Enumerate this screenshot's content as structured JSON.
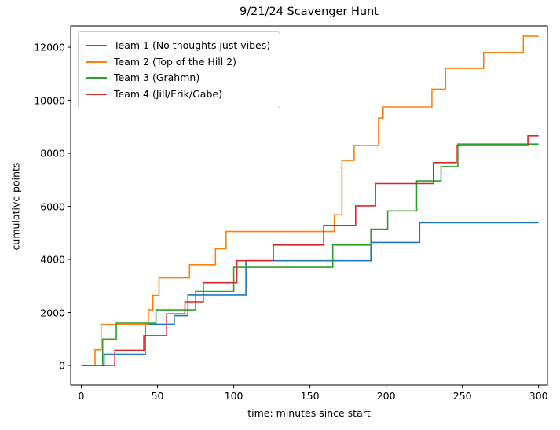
{
  "chart_data": {
    "type": "line",
    "subtype": "step-post",
    "title": "9/21/24 Scavenger Hunt",
    "xlabel": "time: minutes since start",
    "ylabel": "cumulative points",
    "xticks": [
      0,
      50,
      100,
      150,
      200,
      250,
      300
    ],
    "yticks": [
      0,
      2000,
      4000,
      6000,
      8000,
      10000,
      12000
    ],
    "xlim": [
      -7,
      306
    ],
    "ylim": [
      -740,
      12800
    ],
    "grid": false,
    "legend_position": "upper left",
    "axis_color": "#000000",
    "background_color": "#ffffff",
    "series": [
      {
        "name": "Team 1 (No thoughts just vibes)",
        "color": "#1f77b4",
        "steps": [
          [
            0,
            0
          ],
          [
            15,
            430
          ],
          [
            42,
            1560
          ],
          [
            61,
            1880
          ],
          [
            70,
            2670
          ],
          [
            108,
            3950
          ],
          [
            190,
            4640
          ],
          [
            222,
            5380
          ],
          [
            300,
            5380
          ]
        ]
      },
      {
        "name": "Team 2 (Top of the Hill 2)",
        "color": "#ff7f0e",
        "steps": [
          [
            0,
            0
          ],
          [
            9,
            600
          ],
          [
            13,
            1550
          ],
          [
            44,
            2100
          ],
          [
            47,
            2650
          ],
          [
            51,
            3300
          ],
          [
            71,
            3800
          ],
          [
            88,
            4400
          ],
          [
            95,
            5050
          ],
          [
            166,
            5680
          ],
          [
            171,
            7730
          ],
          [
            179,
            8300
          ],
          [
            195,
            9330
          ],
          [
            198,
            9750
          ],
          [
            230,
            10420
          ],
          [
            239,
            11200
          ],
          [
            264,
            11800
          ],
          [
            290,
            12420
          ],
          [
            300,
            12420
          ]
        ]
      },
      {
        "name": "Team 3 (Grahmn)",
        "color": "#2ca02c",
        "steps": [
          [
            0,
            0
          ],
          [
            14,
            1000
          ],
          [
            23,
            1600
          ],
          [
            49,
            2100
          ],
          [
            75,
            2800
          ],
          [
            100,
            3700
          ],
          [
            165,
            4540
          ],
          [
            190,
            5140
          ],
          [
            201,
            5830
          ],
          [
            220,
            6960
          ],
          [
            236,
            7500
          ],
          [
            247,
            8350
          ],
          [
            300,
            8350
          ]
        ]
      },
      {
        "name": "Team 4 (Jill/Erik/Gabe)",
        "color": "#d62728",
        "steps": [
          [
            0,
            0
          ],
          [
            22,
            580
          ],
          [
            41,
            1130
          ],
          [
            56,
            1950
          ],
          [
            68,
            2400
          ],
          [
            80,
            3120
          ],
          [
            102,
            3950
          ],
          [
            126,
            4540
          ],
          [
            159,
            5280
          ],
          [
            180,
            6020
          ],
          [
            193,
            6860
          ],
          [
            231,
            7650
          ],
          [
            246,
            8300
          ],
          [
            293,
            8660
          ],
          [
            300,
            8660
          ]
        ]
      }
    ]
  }
}
